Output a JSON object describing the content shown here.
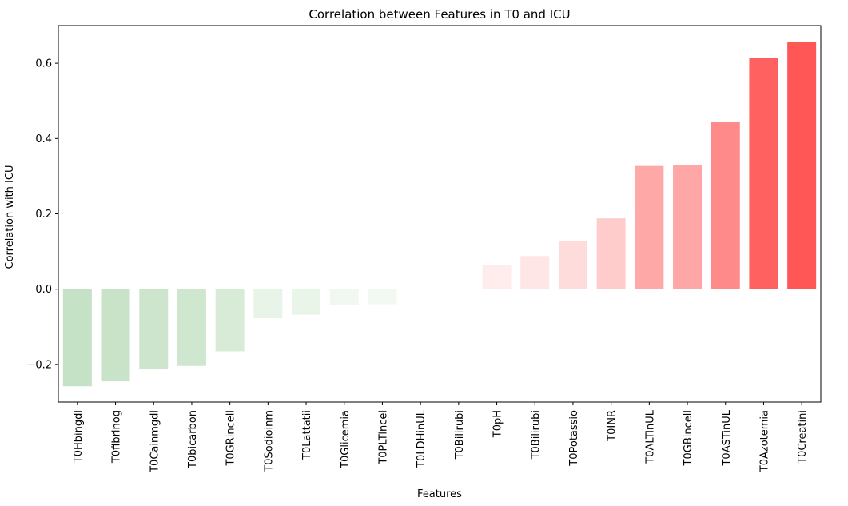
{
  "chart_data": {
    "type": "bar",
    "title": "Correlation between Features in T0 and ICU",
    "xlabel": "Features",
    "ylabel": "Correlation with ICU",
    "categories": [
      "T0Hbingdl",
      "T0fibrinog",
      "T0Cainmgdl",
      "T0bicarbon",
      "T0GRincell",
      "T0Sodioinm",
      "T0Lattatii",
      "T0Glicemia",
      "T0PLTincel",
      "T0LDHinUL",
      "T0Bilirubi",
      "T0pH",
      "T0Bilirubi",
      "T0Potassio",
      "T0INR",
      "T0ALTinUL",
      "T0GBincell",
      "T0ASTinUL",
      "T0Azotemia",
      "T0Creatini"
    ],
    "values": [
      -0.258,
      -0.245,
      -0.213,
      -0.204,
      -0.165,
      -0.077,
      -0.068,
      -0.042,
      -0.04,
      0.001,
      0.002,
      0.065,
      0.088,
      0.127,
      0.188,
      0.327,
      0.33,
      0.444,
      0.614,
      0.656
    ],
    "colors": [
      "#c6e2c6",
      "#c8e3c8",
      "#cce5cc",
      "#cfe7cf",
      "#d7ebd7",
      "#e8f4e8",
      "#eaf5ea",
      "#f1f8f1",
      "#f2f9f2",
      "#ffffff",
      "#fffefe",
      "#ffeded",
      "#ffe6e6",
      "#ffdcdc",
      "#ffcccc",
      "#ffa8a8",
      "#ffa6a6",
      "#ff8a8a",
      "#ff6060",
      "#ff5656"
    ],
    "yticks": [
      -0.2,
      0.0,
      0.2,
      0.4,
      0.6
    ],
    "ytick_labels": [
      "−0.2",
      "0.0",
      "0.2",
      "0.4",
      "0.6"
    ],
    "ylim": [
      -0.3,
      0.7
    ],
    "grid": false
  }
}
